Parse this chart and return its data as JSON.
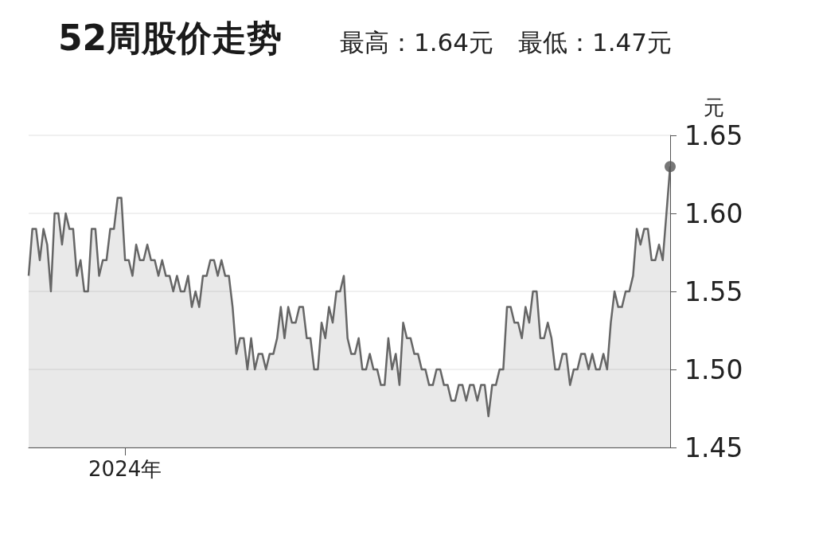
{
  "chart_data": {
    "type": "area",
    "title": "52周股价走势",
    "subtitle": "最高：1.64元　最低：1.47元",
    "ylabel": "元",
    "series": [
      {
        "color": "#666666",
        "values": [
          1.56,
          1.59,
          1.59,
          1.57,
          1.59,
          1.58,
          1.55,
          1.6,
          1.6,
          1.58,
          1.6,
          1.59,
          1.59,
          1.56,
          1.57,
          1.55,
          1.55,
          1.59,
          1.59,
          1.56,
          1.57,
          1.57,
          1.59,
          1.59,
          1.61,
          1.61,
          1.57,
          1.57,
          1.56,
          1.58,
          1.57,
          1.57,
          1.58,
          1.57,
          1.57,
          1.56,
          1.57,
          1.56,
          1.56,
          1.55,
          1.56,
          1.55,
          1.55,
          1.56,
          1.54,
          1.55,
          1.54,
          1.56,
          1.56,
          1.57,
          1.57,
          1.56,
          1.57,
          1.56,
          1.56,
          1.54,
          1.51,
          1.52,
          1.52,
          1.5,
          1.52,
          1.5,
          1.51,
          1.51,
          1.5,
          1.51,
          1.51,
          1.52,
          1.54,
          1.52,
          1.54,
          1.53,
          1.53,
          1.54,
          1.54,
          1.52,
          1.52,
          1.5,
          1.5,
          1.53,
          1.52,
          1.54,
          1.53,
          1.55,
          1.55,
          1.56,
          1.52,
          1.51,
          1.51,
          1.52,
          1.5,
          1.5,
          1.51,
          1.5,
          1.5,
          1.49,
          1.49,
          1.52,
          1.5,
          1.51,
          1.49,
          1.53,
          1.52,
          1.52,
          1.51,
          1.51,
          1.5,
          1.5,
          1.49,
          1.49,
          1.5,
          1.5,
          1.49,
          1.49,
          1.48,
          1.48,
          1.49,
          1.49,
          1.48,
          1.49,
          1.49,
          1.48,
          1.49,
          1.49,
          1.47,
          1.49,
          1.49,
          1.5,
          1.5,
          1.54,
          1.54,
          1.53,
          1.53,
          1.52,
          1.54,
          1.53,
          1.55,
          1.55,
          1.52,
          1.52,
          1.53,
          1.52,
          1.5,
          1.5,
          1.51,
          1.51,
          1.49,
          1.5,
          1.5,
          1.51,
          1.51,
          1.5,
          1.51,
          1.5,
          1.5,
          1.51,
          1.5,
          1.53,
          1.55,
          1.54,
          1.54,
          1.55,
          1.55,
          1.56,
          1.59,
          1.58,
          1.59,
          1.59,
          1.57,
          1.57,
          1.58,
          1.57,
          1.6,
          1.63
        ]
      },
      {
        "type": "scatter",
        "color": "#555555",
        "values": [
          null,
          null,
          null,
          null,
          null,
          null,
          null,
          null,
          null,
          null,
          null,
          null,
          null,
          null,
          null,
          null,
          null,
          null,
          null,
          null,
          null,
          null,
          null,
          null,
          null,
          null,
          null,
          null,
          null,
          null,
          null,
          null,
          null,
          null,
          null,
          null,
          null,
          null,
          null,
          null,
          null,
          null,
          null,
          null,
          null,
          null,
          null,
          null,
          null,
          null,
          null,
          null,
          null,
          null,
          null,
          null,
          null,
          null,
          null,
          null,
          null,
          null,
          null,
          null,
          null,
          null,
          null,
          null,
          null,
          null,
          null,
          null,
          null,
          null,
          null,
          null,
          null,
          null,
          null,
          null,
          null,
          null,
          null,
          null,
          null,
          null,
          null,
          null,
          null,
          null,
          null,
          null,
          null,
          null,
          null,
          null,
          null,
          null,
          null,
          null,
          null,
          null,
          null,
          null,
          null,
          null,
          null,
          null,
          null,
          null,
          null,
          null,
          null,
          null,
          null,
          null,
          null,
          null,
          null,
          null,
          null,
          null,
          null,
          null,
          null,
          null,
          null,
          null,
          null,
          null,
          null,
          null,
          null,
          null,
          null,
          null,
          null,
          null,
          null,
          null,
          null,
          null,
          null,
          null,
          null,
          null,
          null,
          null,
          null,
          null,
          null,
          null,
          null,
          null,
          null,
          null,
          null,
          null,
          null,
          null,
          null,
          null,
          null,
          null,
          null,
          null,
          null,
          null,
          null,
          null,
          null,
          null,
          null,
          1.63
        ]
      }
    ],
    "categories": [
      null,
      null,
      null,
      null,
      null,
      null,
      null,
      null,
      null,
      null,
      null,
      null,
      null,
      null,
      null,
      null,
      null,
      null,
      null,
      null,
      null,
      null,
      null,
      null,
      null,
      null,
      "2024年",
      null,
      null,
      null,
      null,
      null,
      null,
      null,
      null,
      null,
      null,
      null,
      null,
      null,
      null,
      null,
      null,
      null,
      null,
      null,
      null,
      null,
      null,
      null,
      null,
      null,
      null,
      null,
      null,
      null,
      null,
      null,
      null,
      null,
      null,
      null,
      null,
      null,
      null,
      null,
      null,
      null,
      null,
      null,
      null,
      null,
      null,
      null,
      null,
      null,
      null,
      null,
      null,
      null,
      null,
      null,
      null,
      null,
      null,
      null,
      null,
      null,
      null,
      null,
      null,
      null,
      null,
      null,
      null,
      null,
      null,
      null,
      null,
      null,
      null,
      null,
      null,
      null,
      null,
      null,
      null,
      null,
      null,
      null,
      null,
      null,
      null,
      null,
      null,
      null,
      null,
      null,
      null,
      null,
      null,
      null,
      null,
      null,
      null,
      null,
      null,
      null,
      null,
      null,
      null,
      null,
      null,
      null,
      null,
      null,
      null,
      null,
      null,
      null,
      null,
      null,
      null,
      null,
      null,
      null,
      null,
      null,
      null,
      null,
      null,
      null,
      null,
      null,
      null,
      null,
      null,
      null,
      null,
      null,
      null,
      null,
      null,
      null,
      null,
      null,
      null,
      null,
      null,
      null,
      null,
      null,
      null,
      null
    ],
    "ylim": [
      1.45,
      1.65
    ],
    "yticks": [
      {
        "value": 1.45,
        "label": "1.45"
      },
      {
        "value": 1.5,
        "label": "1.50"
      },
      {
        "value": 1.55,
        "label": "1.55"
      },
      {
        "value": 1.6,
        "label": "1.60"
      },
      {
        "value": 1.65,
        "label": "1.65"
      }
    ],
    "grid": "y"
  }
}
